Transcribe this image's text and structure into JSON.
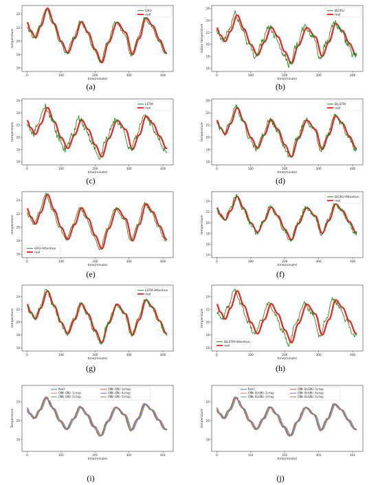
{
  "colors": {
    "real": "#ff1a1a",
    "pred": "#1f8a1f",
    "c_real": "#4c72b0",
    "c_1": "#dd8452",
    "c_2": "#55a868",
    "c_3": "#c44e52",
    "c_4": "#8172b3",
    "c_5": "#937860"
  },
  "chart_data": [
    {
      "type": "line",
      "panel": "(a)",
      "xlabel": "time(minute)",
      "ylabel": "temperature",
      "xlim": [
        -15,
        430
      ],
      "ylim": [
        15.5,
        25.3
      ],
      "yticks": [
        16,
        18,
        20,
        22,
        24
      ],
      "xticks": [
        0,
        100,
        200,
        300,
        400
      ],
      "legend_position": "top-right",
      "noise": 0.25,
      "series": [
        {
          "name": "GRU",
          "role": "pred",
          "shift": -4,
          "amp": 1.0
        },
        {
          "name": "real",
          "role": "real"
        }
      ]
    },
    {
      "type": "line",
      "panel": "(b)",
      "xlabel": "time(minute)",
      "ylabel": "indoor temperature",
      "xlim": [
        -15,
        430
      ],
      "ylim": [
        15.5,
        26.5
      ],
      "yticks": [
        16,
        18,
        20,
        22,
        24,
        26
      ],
      "xticks": [
        0,
        100,
        200,
        300,
        400
      ],
      "legend_position": "top-right",
      "noise": 0.6,
      "series": [
        {
          "name": "BiGRU",
          "role": "pred",
          "shift": -6,
          "amp": 1.05
        },
        {
          "name": "real",
          "role": "real"
        }
      ]
    },
    {
      "type": "line",
      "panel": "(c)",
      "xlabel": "time(minute)",
      "ylabel": "temperature",
      "xlim": [
        -15,
        430
      ],
      "ylim": [
        15.5,
        26.3
      ],
      "yticks": [
        16,
        18,
        20,
        22,
        24,
        26
      ],
      "xticks": [
        0,
        100,
        200,
        300,
        400
      ],
      "legend_position": "top-right",
      "noise": 0.55,
      "series": [
        {
          "name": "LSTM",
          "role": "pred",
          "shift": -7,
          "amp": 1.08
        },
        {
          "name": "real",
          "role": "real"
        }
      ]
    },
    {
      "type": "line",
      "panel": "(d)",
      "xlabel": "time(minute)",
      "ylabel": "temperature",
      "xlim": [
        -15,
        430
      ],
      "ylim": [
        15.5,
        26.3
      ],
      "yticks": [
        16,
        18,
        20,
        22,
        24,
        26
      ],
      "xticks": [
        0,
        100,
        200,
        300,
        400
      ],
      "legend_position": "top-right",
      "noise": 0.45,
      "series": [
        {
          "name": "BiLSTM",
          "role": "pred",
          "shift": -4,
          "amp": 1.04
        },
        {
          "name": "real",
          "role": "real"
        }
      ]
    },
    {
      "type": "line",
      "panel": "(e)",
      "xlabel": "time(minute)",
      "ylabel": "temperature",
      "xlim": [
        -15,
        430
      ],
      "ylim": [
        15.5,
        25.3
      ],
      "yticks": [
        16,
        18,
        20,
        22,
        24
      ],
      "xticks": [
        0,
        100,
        200,
        300,
        400
      ],
      "legend_position": "bottom-left",
      "noise": 0.2,
      "series": [
        {
          "name": "GRU-Attention",
          "role": "pred",
          "shift": -5,
          "amp": 1.02
        },
        {
          "name": "real",
          "role": "real"
        }
      ]
    },
    {
      "type": "line",
      "panel": "(f)",
      "xlabel": "time(minute)",
      "ylabel": "temperature",
      "xlim": [
        -15,
        430
      ],
      "ylim": [
        13.5,
        25.8
      ],
      "yticks": [
        14,
        16,
        18,
        20,
        22,
        24
      ],
      "xticks": [
        0,
        100,
        200,
        300,
        400
      ],
      "legend_position": "top-right",
      "noise": 0.4,
      "series": [
        {
          "name": "BiGRU-Attention",
          "role": "pred",
          "shift": -3,
          "amp": 1.05
        },
        {
          "name": "real",
          "role": "real"
        }
      ]
    },
    {
      "type": "line",
      "panel": "(g)",
      "xlabel": "time(minute)",
      "ylabel": "temperature",
      "xlim": [
        -15,
        430
      ],
      "ylim": [
        15.5,
        25.8
      ],
      "yticks": [
        16,
        18,
        20,
        22,
        24
      ],
      "xticks": [
        0,
        100,
        200,
        300,
        400
      ],
      "legend_position": "top-right",
      "noise": 0.3,
      "series": [
        {
          "name": "LSTM-Attention",
          "role": "pred",
          "shift": -3,
          "amp": 1.03
        },
        {
          "name": "real",
          "role": "real"
        }
      ]
    },
    {
      "type": "line",
      "panel": "(h)",
      "xlabel": "time(minute)",
      "ylabel": "temperature",
      "xlim": [
        -15,
        430
      ],
      "ylim": [
        15.5,
        25.8
      ],
      "yticks": [
        16,
        18,
        20,
        22,
        24
      ],
      "xticks": [
        0,
        100,
        200,
        300,
        400
      ],
      "legend_position": "bottom-left",
      "noise": 0.35,
      "series": [
        {
          "name": "BiLSTM-Attention",
          "role": "pred",
          "shift": -8,
          "amp": 1.06
        },
        {
          "name": "real",
          "role": "real"
        }
      ]
    },
    {
      "type": "line",
      "panel": "(i)",
      "xlabel": "time(minute)",
      "ylabel": "Temperature",
      "xlim": [
        -15,
        430
      ],
      "ylim": [
        13.5,
        27.5
      ],
      "yticks": [
        16,
        20,
        24
      ],
      "xticks": [
        0,
        100,
        200,
        300,
        400
      ],
      "xticklabels": [
        "0",
        "101",
        "201",
        "301",
        "401"
      ],
      "legend_position": "top",
      "legend_columns": 2,
      "noise": 0.15,
      "mono": true,
      "series": [
        {
          "name": "Real",
          "role": "c_real"
        },
        {
          "name": "CNN-GRU-1step",
          "role": "c_1",
          "shift": -2,
          "amp": 1.01
        },
        {
          "name": "CNN-GRU-2step",
          "role": "c_2",
          "shift": -3,
          "amp": 1.02
        },
        {
          "name": "CNN-GRU-3step",
          "role": "c_3",
          "shift": -4,
          "amp": 1.02
        },
        {
          "name": "CNN-GRU-4step",
          "role": "c_4",
          "shift": -5,
          "amp": 1.03
        },
        {
          "name": "CNN-GRU-5step",
          "role": "c_5",
          "shift": -6,
          "amp": 1.03
        }
      ]
    },
    {
      "type": "line",
      "panel": "(j)",
      "xlabel": "time(minute)",
      "ylabel": "temperature",
      "xlim": [
        -15,
        430
      ],
      "ylim": [
        13.5,
        27.5
      ],
      "yticks": [
        16,
        20,
        24
      ],
      "xticks": [
        0,
        100,
        200,
        300,
        400
      ],
      "xticklabels": [
        "0",
        "101",
        "201",
        "301",
        "401"
      ],
      "legend_position": "top",
      "legend_columns": 2,
      "noise": 0.15,
      "mono": true,
      "series": [
        {
          "name": "Real",
          "role": "c_real"
        },
        {
          "name": "CNN-BiGRU-1step",
          "role": "c_1",
          "shift": -2,
          "amp": 1.01
        },
        {
          "name": "CNN-BiGRU-2step",
          "role": "c_2",
          "shift": -3,
          "amp": 1.02
        },
        {
          "name": "CNN-BiGRU-3step",
          "role": "c_3",
          "shift": -4,
          "amp": 1.02
        },
        {
          "name": "CNN-BiGRU-4step",
          "role": "c_4",
          "shift": -5,
          "amp": 1.03
        },
        {
          "name": "CNN-BiGRU-5step",
          "role": "c_5",
          "shift": -6,
          "amp": 1.03
        }
      ]
    }
  ],
  "real_series": {
    "x": [
      0,
      10,
      25,
      40,
      60,
      80,
      100,
      120,
      140,
      160,
      180,
      200,
      220,
      240,
      265,
      290,
      310,
      330,
      350,
      370,
      390,
      410
    ],
    "y": [
      22.8,
      21.6,
      20.5,
      22.2,
      24.9,
      22.6,
      20.0,
      18.2,
      20.4,
      22.9,
      21.3,
      18.8,
      16.8,
      19.8,
      22.8,
      21.3,
      18.0,
      20.4,
      23.5,
      22.3,
      20.2,
      18.2
    ]
  }
}
